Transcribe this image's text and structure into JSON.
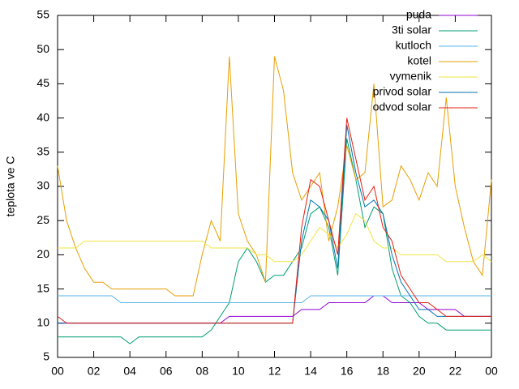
{
  "chart_data": {
    "type": "line",
    "ylabel": "teplota ve C",
    "x": [
      0,
      0.5,
      1,
      1.5,
      2,
      2.5,
      3,
      3.5,
      4,
      4.5,
      5,
      5.5,
      6,
      6.5,
      7,
      7.5,
      8,
      8.5,
      9,
      9.5,
      10,
      10.5,
      11,
      11.5,
      12,
      12.5,
      13,
      13.5,
      14,
      14.5,
      15,
      15.5,
      16,
      16.5,
      17,
      17.5,
      18,
      18.5,
      19,
      19.5,
      20,
      20.5,
      21,
      21.5,
      22,
      22.5,
      23,
      23.5,
      24
    ],
    "xlim": [
      0,
      24
    ],
    "xticks": [
      {
        "value": 0,
        "label": "00"
      },
      {
        "value": 2,
        "label": "02"
      },
      {
        "value": 4,
        "label": "04"
      },
      {
        "value": 6,
        "label": "06"
      },
      {
        "value": 8,
        "label": "08"
      },
      10,
      12,
      14,
      16,
      18,
      20,
      22,
      {
        "value": 24,
        "label": "00"
      }
    ],
    "ylim": [
      5,
      55
    ],
    "yticks": [
      5,
      10,
      15,
      20,
      25,
      30,
      35,
      40,
      45,
      50,
      55
    ],
    "grid": false,
    "legend": "top-right",
    "series": [
      {
        "name": "puda",
        "color": "#9400d3",
        "values": [
          10,
          10,
          10,
          10,
          10,
          10,
          10,
          10,
          10,
          10,
          10,
          10,
          10,
          10,
          10,
          10,
          10,
          10,
          10,
          11,
          11,
          11,
          11,
          11,
          11,
          11,
          11,
          12,
          12,
          12,
          13,
          13,
          13,
          13,
          13,
          14,
          14,
          13,
          13,
          13,
          13,
          12,
          12,
          12,
          12,
          11,
          11,
          11,
          11
        ]
      },
      {
        "name": "3ti solar",
        "color": "#009e73",
        "values": [
          8,
          8,
          8,
          8,
          8,
          8,
          8,
          8,
          7,
          8,
          8,
          8,
          8,
          8,
          8,
          8,
          8,
          9,
          11,
          13,
          19,
          21,
          19,
          16,
          17,
          17,
          19,
          21,
          26,
          27,
          24,
          17,
          37,
          31,
          24,
          27,
          26,
          18,
          14,
          13,
          11,
          10,
          10,
          9,
          9,
          9,
          9,
          9,
          9
        ]
      },
      {
        "name": "kutloch",
        "color": "#56b4e9",
        "values": [
          14,
          14,
          14,
          14,
          14,
          14,
          14,
          13,
          13,
          13,
          13,
          13,
          13,
          13,
          13,
          13,
          13,
          13,
          13,
          13,
          13,
          13,
          13,
          13,
          13,
          13,
          13,
          13,
          14,
          14,
          14,
          14,
          14,
          14,
          14,
          14,
          14,
          14,
          14,
          14,
          14,
          14,
          14,
          14,
          14,
          14,
          14,
          14,
          14
        ]
      },
      {
        "name": "kotel",
        "color": "#e69f00",
        "values": [
          33,
          25,
          21,
          18,
          16,
          16,
          15,
          15,
          15,
          15,
          15,
          15,
          15,
          14,
          14,
          14,
          20,
          25,
          22,
          49,
          26,
          22,
          20,
          16,
          49,
          44,
          32,
          28,
          30,
          32,
          22,
          27,
          36,
          31,
          32,
          45,
          27,
          28,
          33,
          31,
          28,
          32,
          30,
          43,
          30,
          24,
          19,
          17,
          31
        ]
      },
      {
        "name": "vymenik",
        "color": "#f0e442",
        "values": [
          21,
          21,
          21,
          22,
          22,
          22,
          22,
          22,
          22,
          22,
          22,
          22,
          22,
          22,
          22,
          22,
          22,
          21,
          21,
          21,
          21,
          21,
          20,
          20,
          19,
          19,
          19,
          20,
          22,
          24,
          23,
          21,
          23,
          26,
          25,
          22,
          21,
          21,
          20,
          20,
          20,
          20,
          20,
          19,
          19,
          19,
          19,
          20,
          19
        ]
      },
      {
        "name": "privod solar",
        "color": "#0072b2",
        "values": [
          10,
          10,
          10,
          10,
          10,
          10,
          10,
          10,
          10,
          10,
          10,
          10,
          10,
          10,
          10,
          10,
          10,
          10,
          10,
          10,
          10,
          10,
          10,
          10,
          10,
          10,
          10,
          22,
          28,
          27,
          25,
          18,
          39,
          32,
          27,
          28,
          26,
          20,
          16,
          14,
          12,
          12,
          11,
          11,
          11,
          11,
          11,
          11,
          11
        ]
      },
      {
        "name": "odvod solar",
        "color": "#e51e10",
        "values": [
          11,
          10,
          10,
          10,
          10,
          10,
          10,
          10,
          10,
          10,
          10,
          10,
          10,
          10,
          10,
          10,
          10,
          10,
          10,
          10,
          10,
          10,
          10,
          10,
          10,
          10,
          10,
          24,
          31,
          30,
          25,
          20,
          40,
          34,
          28,
          30,
          24,
          22,
          17,
          15,
          13,
          13,
          12,
          11,
          11,
          11,
          11,
          11,
          11
        ]
      }
    ]
  }
}
